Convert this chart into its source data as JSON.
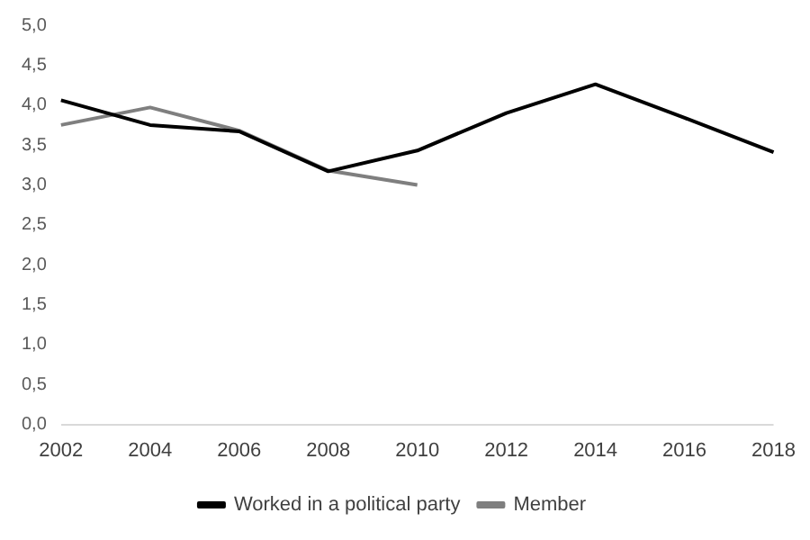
{
  "chart_data": {
    "type": "line",
    "categories": [
      "2002",
      "2004",
      "2006",
      "2008",
      "2010",
      "2012",
      "2014",
      "2016",
      "2018"
    ],
    "series": [
      {
        "name": "Worked in a political party",
        "color": "#000000",
        "values": [
          4.06,
          3.75,
          3.67,
          3.17,
          3.43,
          3.9,
          4.26,
          3.84,
          3.41
        ]
      },
      {
        "name": "Member",
        "color": "#7f7f7f",
        "values": [
          3.75,
          3.97,
          3.68,
          3.18,
          3.0,
          null,
          null,
          null,
          null
        ]
      }
    ],
    "ylim": [
      0,
      5
    ],
    "yticks": [
      {
        "value": 0,
        "label": "0,0"
      },
      {
        "value": 0.5,
        "label": "0,5"
      },
      {
        "value": 1,
        "label": "1,0"
      },
      {
        "value": 1.5,
        "label": "1,5"
      },
      {
        "value": 2,
        "label": "2,0"
      },
      {
        "value": 2.5,
        "label": "2,5"
      },
      {
        "value": 3,
        "label": "3,0"
      },
      {
        "value": 3.5,
        "label": "3,5"
      },
      {
        "value": 4,
        "label": "4,0"
      },
      {
        "value": 4.5,
        "label": "4,5"
      },
      {
        "value": 5,
        "label": "5,0"
      }
    ],
    "grid": false,
    "legend": "bottom",
    "marker": "none",
    "line_style": "solid"
  }
}
